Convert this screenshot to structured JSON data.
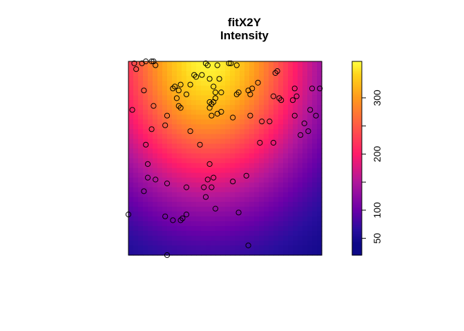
{
  "chart_data": {
    "type": "heatmap",
    "title": "fitX2Y",
    "subtitle": "Intensity",
    "xlim": [
      0,
      1
    ],
    "ylim": [
      0,
      1
    ],
    "colorbar": {
      "range": [
        20,
        365
      ],
      "ticks": [
        50,
        100,
        150,
        200,
        250,
        300
      ],
      "tick_labels": [
        "50",
        "100",
        "",
        "200",
        "",
        "300"
      ],
      "colormap": "plasma-like",
      "color_stops": [
        {
          "value": 20,
          "color": "#0d0887"
        },
        {
          "value": 40,
          "color": "#0d0887"
        },
        {
          "value": 65,
          "color": "#2a0e9e"
        },
        {
          "value": 100,
          "color": "#6a00a8"
        },
        {
          "value": 150,
          "color": "#b0179b"
        },
        {
          "value": 200,
          "color": "#ff1c6a"
        },
        {
          "value": 250,
          "color": "#ff5a45"
        },
        {
          "value": 300,
          "color": "#ff9a1c"
        },
        {
          "value": 340,
          "color": "#ffd21a"
        },
        {
          "value": 365,
          "color": "#ffff40"
        }
      ]
    },
    "intensity_model": {
      "peak": 360,
      "base": 30,
      "center": [
        0.41,
        1.02
      ],
      "rx": 0.56,
      "ry": 0.72
    },
    "points": [
      [
        0.03,
        0.99
      ],
      [
        0.07,
        0.99
      ],
      [
        0.09,
        1.0
      ],
      [
        0.12,
        1.0
      ],
      [
        0.13,
        1.0
      ],
      [
        0.14,
        0.98
      ],
      [
        0.04,
        0.96
      ],
      [
        0.4,
        0.99
      ],
      [
        0.41,
        0.98
      ],
      [
        0.46,
        0.98
      ],
      [
        0.52,
        0.99
      ],
      [
        0.53,
        0.99
      ],
      [
        0.56,
        0.98
      ],
      [
        0.34,
        0.93
      ],
      [
        0.35,
        0.92
      ],
      [
        0.38,
        0.93
      ],
      [
        0.42,
        0.91
      ],
      [
        0.47,
        0.91
      ],
      [
        0.32,
        0.88
      ],
      [
        0.08,
        0.85
      ],
      [
        0.23,
        0.86
      ],
      [
        0.24,
        0.87
      ],
      [
        0.26,
        0.85
      ],
      [
        0.27,
        0.88
      ],
      [
        0.3,
        0.83
      ],
      [
        0.44,
        0.87
      ],
      [
        0.45,
        0.84
      ],
      [
        0.48,
        0.84
      ],
      [
        0.56,
        0.83
      ],
      [
        0.57,
        0.84
      ],
      [
        0.62,
        0.85
      ],
      [
        0.63,
        0.83
      ],
      [
        0.64,
        0.86
      ],
      [
        0.67,
        0.89
      ],
      [
        0.76,
        0.94
      ],
      [
        0.77,
        0.95
      ],
      [
        0.75,
        0.82
      ],
      [
        0.78,
        0.81
      ],
      [
        0.79,
        0.8
      ],
      [
        0.85,
        0.8
      ],
      [
        0.86,
        0.86
      ],
      [
        0.87,
        0.82
      ],
      [
        0.95,
        0.86
      ],
      [
        0.99,
        0.86
      ],
      [
        0.25,
        0.81
      ],
      [
        0.26,
        0.77
      ],
      [
        0.27,
        0.76
      ],
      [
        0.42,
        0.79
      ],
      [
        0.43,
        0.78
      ],
      [
        0.42,
        0.76
      ],
      [
        0.43,
        0.72
      ],
      [
        0.44,
        0.79
      ],
      [
        0.45,
        0.81
      ],
      [
        0.48,
        0.74
      ],
      [
        0.46,
        0.73
      ],
      [
        0.54,
        0.71
      ],
      [
        0.63,
        0.72
      ],
      [
        0.69,
        0.69
      ],
      [
        0.73,
        0.69
      ],
      [
        0.86,
        0.72
      ],
      [
        0.94,
        0.75
      ],
      [
        0.97,
        0.72
      ],
      [
        0.02,
        0.75
      ],
      [
        0.13,
        0.77
      ],
      [
        0.2,
        0.72
      ],
      [
        0.19,
        0.67
      ],
      [
        0.12,
        0.65
      ],
      [
        0.91,
        0.68
      ],
      [
        0.89,
        0.62
      ],
      [
        0.93,
        0.64
      ],
      [
        0.32,
        0.64
      ],
      [
        0.37,
        0.57
      ],
      [
        0.75,
        0.58
      ],
      [
        0.68,
        0.58
      ],
      [
        0.09,
        0.57
      ],
      [
        0.1,
        0.47
      ],
      [
        0.42,
        0.47
      ],
      [
        0.1,
        0.4
      ],
      [
        0.14,
        0.39
      ],
      [
        0.2,
        0.37
      ],
      [
        0.3,
        0.35
      ],
      [
        0.39,
        0.35
      ],
      [
        0.43,
        0.35
      ],
      [
        0.44,
        0.4
      ],
      [
        0.54,
        0.38
      ],
      [
        0.61,
        0.41
      ],
      [
        0.08,
        0.33
      ],
      [
        0.4,
        0.3
      ],
      [
        0.0,
        0.21
      ],
      [
        0.19,
        0.2
      ],
      [
        0.3,
        0.21
      ],
      [
        0.28,
        0.19
      ],
      [
        0.27,
        0.18
      ],
      [
        0.23,
        0.18
      ],
      [
        0.45,
        0.24
      ],
      [
        0.57,
        0.22
      ],
      [
        0.62,
        0.05
      ],
      [
        0.2,
        0.0
      ],
      [
        0.41,
        0.39
      ]
    ]
  }
}
